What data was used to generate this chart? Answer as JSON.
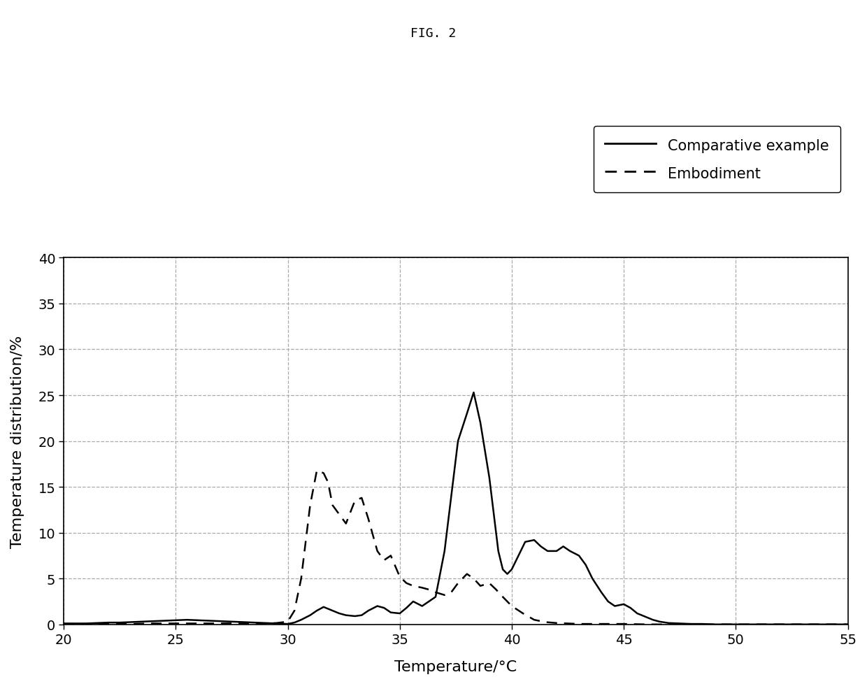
{
  "title": "FIG. 2",
  "xlabel": "Temperature/°C",
  "ylabel": "Temperature distribution/%",
  "xlim": [
    20,
    55
  ],
  "ylim": [
    0,
    40
  ],
  "xticks": [
    20,
    25,
    30,
    35,
    40,
    45,
    50,
    55
  ],
  "yticks": [
    0,
    5,
    10,
    15,
    20,
    25,
    30,
    35,
    40
  ],
  "legend_labels": [
    "Comparative example",
    "Embodiment"
  ],
  "line_color": "#000000",
  "background_color": "#ffffff",
  "comparative_x": [
    20.0,
    20.5,
    21.0,
    21.5,
    22.0,
    22.5,
    23.0,
    23.5,
    24.0,
    24.5,
    25.0,
    25.5,
    26.0,
    26.5,
    27.0,
    27.5,
    28.0,
    28.5,
    29.0,
    29.5,
    30.0,
    30.3,
    30.6,
    31.0,
    31.3,
    31.6,
    32.0,
    32.3,
    32.6,
    33.0,
    33.3,
    33.6,
    34.0,
    34.3,
    34.6,
    35.0,
    35.3,
    35.6,
    36.0,
    36.3,
    36.6,
    37.0,
    37.3,
    37.6,
    38.0,
    38.3,
    38.6,
    39.0,
    39.2,
    39.4,
    39.6,
    39.8,
    40.0,
    40.3,
    40.6,
    41.0,
    41.3,
    41.6,
    42.0,
    42.3,
    42.6,
    43.0,
    43.3,
    43.6,
    44.0,
    44.3,
    44.6,
    45.0,
    45.3,
    45.6,
    46.0,
    46.3,
    46.6,
    47.0,
    47.5,
    48.0,
    48.5,
    49.0,
    50.0,
    51.0,
    52.0,
    53.0,
    54.0,
    55.0
  ],
  "comparative_y": [
    0.1,
    0.1,
    0.1,
    0.15,
    0.2,
    0.2,
    0.25,
    0.3,
    0.35,
    0.4,
    0.45,
    0.5,
    0.45,
    0.4,
    0.35,
    0.3,
    0.25,
    0.2,
    0.15,
    0.1,
    0.05,
    0.2,
    0.5,
    1.0,
    1.5,
    1.9,
    1.5,
    1.2,
    1.0,
    0.9,
    1.0,
    1.5,
    2.0,
    1.8,
    1.3,
    1.2,
    1.8,
    2.5,
    2.0,
    2.5,
    3.0,
    8.0,
    14.0,
    20.0,
    23.0,
    25.3,
    22.0,
    16.0,
    12.0,
    8.0,
    6.0,
    5.5,
    6.0,
    7.5,
    9.0,
    9.2,
    8.5,
    8.0,
    8.0,
    8.5,
    8.0,
    7.5,
    6.5,
    5.0,
    3.5,
    2.5,
    2.0,
    2.2,
    1.8,
    1.2,
    0.8,
    0.5,
    0.3,
    0.15,
    0.1,
    0.05,
    0.05,
    0.0,
    0.0,
    0.0,
    0.0,
    0.0,
    0.0,
    0.0
  ],
  "embodiment_x": [
    20.0,
    21.0,
    22.0,
    23.0,
    24.0,
    25.0,
    26.0,
    27.0,
    28.0,
    29.0,
    29.5,
    30.0,
    30.3,
    30.6,
    31.0,
    31.3,
    31.6,
    31.8,
    32.0,
    32.3,
    32.6,
    33.0,
    33.3,
    33.6,
    34.0,
    34.3,
    34.6,
    35.0,
    35.3,
    35.6,
    36.0,
    36.3,
    36.6,
    37.0,
    37.3,
    37.6,
    38.0,
    38.3,
    38.6,
    39.0,
    39.3,
    39.6,
    40.0,
    40.5,
    41.0,
    41.5,
    42.0,
    42.5,
    43.0,
    43.5,
    44.0,
    44.5,
    45.0,
    46.0,
    47.0,
    48.0,
    49.0,
    50.0,
    51.0,
    52.0,
    55.0
  ],
  "embodiment_y": [
    0.05,
    0.05,
    0.05,
    0.05,
    0.1,
    0.1,
    0.1,
    0.1,
    0.1,
    0.1,
    0.15,
    0.3,
    1.5,
    5.0,
    13.0,
    16.8,
    16.5,
    15.5,
    13.0,
    12.0,
    11.0,
    13.5,
    13.8,
    11.5,
    8.0,
    7.0,
    7.5,
    5.2,
    4.5,
    4.2,
    4.0,
    3.8,
    3.5,
    3.2,
    3.5,
    4.5,
    5.5,
    5.0,
    4.2,
    4.5,
    3.8,
    3.0,
    2.0,
    1.2,
    0.5,
    0.25,
    0.15,
    0.1,
    0.05,
    0.05,
    0.05,
    0.05,
    0.05,
    0.0,
    0.0,
    0.0,
    0.0,
    0.0,
    0.0,
    0.0,
    0.0
  ]
}
